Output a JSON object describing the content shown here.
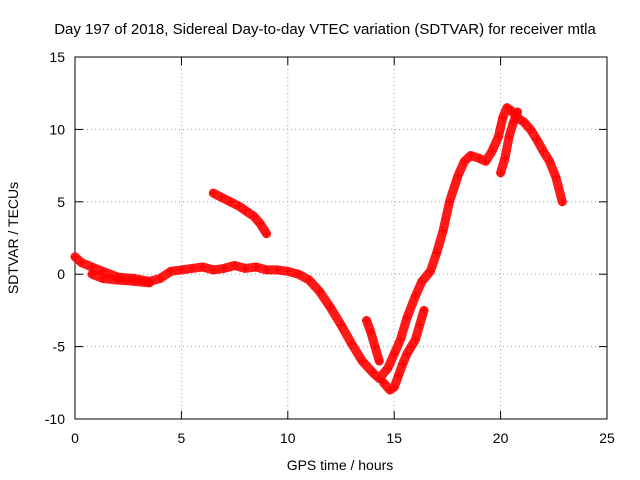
{
  "chart_data": {
    "type": "scatter",
    "title": "Day 197 of 2018, Sidereal Day-to-day VTEC variation (SDTVAR) for receiver mtla",
    "xlabel": "GPS time / hours",
    "ylabel": "SDTVAR / TECUs",
    "xlim": [
      0,
      25
    ],
    "ylim": [
      -10,
      15
    ],
    "xticks": [
      0,
      5,
      10,
      15,
      20,
      25
    ],
    "yticks": [
      -10,
      -5,
      0,
      5,
      10,
      15
    ],
    "grid": true,
    "marker": "+",
    "color": "#ff0000",
    "series": [
      {
        "name": "main-trace",
        "x": [
          0,
          0.3,
          0.8,
          1.3,
          2.0,
          2.8,
          3.5,
          4.0,
          4.5,
          5.0,
          5.5,
          6.0,
          6.5,
          7.0,
          7.5,
          8.0,
          8.5,
          9.0,
          9.5,
          10.0,
          10.5,
          11.0,
          11.5,
          12.0,
          12.5,
          13.0,
          13.5,
          14.0,
          14.3,
          14.7,
          15.0,
          15.3,
          15.6,
          16.0,
          16.3,
          16.7,
          17.0,
          17.3,
          17.6,
          18.0,
          18.3,
          18.6,
          19.0,
          19.3,
          19.6,
          19.9,
          20.1,
          20.3,
          20.5,
          20.8,
          21.1,
          21.4,
          21.7,
          22.0,
          22.3,
          22.6,
          22.9
        ],
        "y": [
          1.2,
          0.8,
          0.5,
          0.2,
          -0.2,
          -0.3,
          -0.5,
          -0.3,
          0.2,
          0.3,
          0.4,
          0.5,
          0.3,
          0.4,
          0.6,
          0.4,
          0.5,
          0.3,
          0.3,
          0.2,
          0.0,
          -0.4,
          -1.2,
          -2.3,
          -3.5,
          -4.8,
          -6.0,
          -6.8,
          -7.2,
          -6.5,
          -5.5,
          -4.5,
          -3.0,
          -1.5,
          -0.5,
          0.2,
          1.5,
          3.0,
          5.0,
          6.8,
          7.8,
          8.2,
          8.0,
          7.8,
          8.5,
          9.5,
          10.8,
          11.5,
          11.3,
          10.8,
          10.5,
          10.0,
          9.3,
          8.5,
          7.8,
          6.7,
          5.0
        ]
      },
      {
        "name": "low-offset-trace",
        "x": [
          14.5,
          14.8,
          15.0,
          15.2,
          15.4,
          15.6,
          15.8,
          16.0,
          16.2,
          16.4
        ],
        "y": [
          -7.5,
          -8.0,
          -7.8,
          -7.0,
          -6.2,
          -5.5,
          -5.0,
          -4.5,
          -3.5,
          -2.5
        ]
      },
      {
        "name": "mid-trace",
        "x": [
          13.7,
          13.9,
          14.1,
          14.3
        ],
        "y": [
          -3.2,
          -4.0,
          -5.0,
          -6.0
        ]
      },
      {
        "name": "secondary-trace",
        "x": [
          6.5,
          6.9,
          7.3,
          7.7,
          8.0,
          8.4,
          8.7,
          9.0
        ],
        "y": [
          5.6,
          5.3,
          5.0,
          4.7,
          4.4,
          4.0,
          3.5,
          2.8
        ]
      },
      {
        "name": "offset-trace",
        "x": [
          0.8,
          1.3,
          2.0,
          2.8,
          3.5
        ],
        "y": [
          0.0,
          -0.3,
          -0.4,
          -0.5,
          -0.6
        ]
      },
      {
        "name": "late-low-trace",
        "x": [
          20.0,
          20.2,
          20.4,
          20.6,
          20.8
        ],
        "y": [
          7.0,
          8.0,
          9.5,
          10.5,
          11.2
        ]
      }
    ]
  }
}
